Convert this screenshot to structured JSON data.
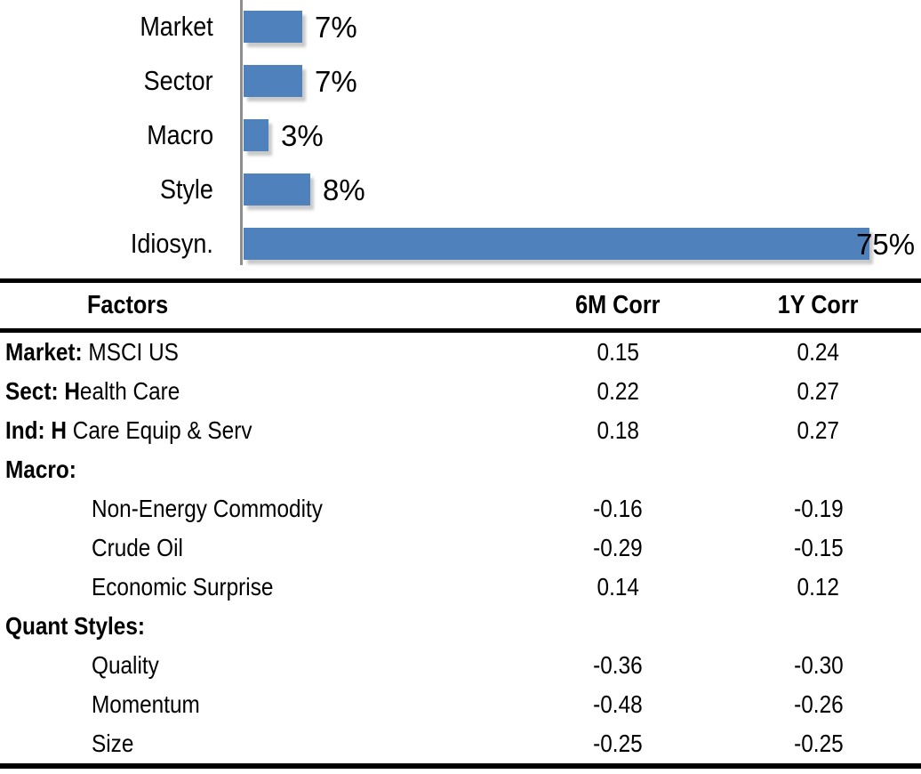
{
  "chart_data": {
    "type": "bar",
    "orientation": "horizontal",
    "title": "",
    "xlabel": "",
    "ylabel": "",
    "categories": [
      "Market",
      "Sector",
      "Macro",
      "Style",
      "Idiosyn."
    ],
    "values": [
      7,
      7,
      3,
      8,
      75
    ],
    "value_labels": [
      "7%",
      "7%",
      "3%",
      "8%",
      "75%"
    ],
    "xlim": [
      0,
      75
    ],
    "grid": false,
    "legend": false,
    "bar_color": "#4F81BD",
    "axis_color": "#8E8E8E"
  },
  "table": {
    "headers": {
      "factors": "Factors",
      "corr6m": "6M Corr",
      "corr1y": "1Y Corr"
    },
    "rows": [
      {
        "bold": "Market:",
        "text": " MSCI US",
        "indent": false,
        "corr6m": "0.15",
        "corr1y": "0.24"
      },
      {
        "bold": "Sect: H",
        "text": "ealth Care",
        "indent": false,
        "corr6m": "0.22",
        "corr1y": "0.27"
      },
      {
        "bold": "Ind: H ",
        "text": "Care Equip & Serv",
        "indent": false,
        "corr6m": "0.18",
        "corr1y": "0.27"
      },
      {
        "bold": "Macro:",
        "text": "",
        "indent": false,
        "corr6m": "",
        "corr1y": ""
      },
      {
        "bold": "",
        "text": "Non-Energy Commodity",
        "indent": true,
        "corr6m": "-0.16",
        "corr1y": "-0.19"
      },
      {
        "bold": "",
        "text": "Crude Oil",
        "indent": true,
        "corr6m": "-0.29",
        "corr1y": "-0.15"
      },
      {
        "bold": "",
        "text": "Economic Surprise",
        "indent": true,
        "corr6m": "0.14",
        "corr1y": "0.12"
      },
      {
        "bold": "Quant Styles:",
        "text": "",
        "indent": false,
        "corr6m": "",
        "corr1y": ""
      },
      {
        "bold": "",
        "text": "Quality",
        "indent": true,
        "corr6m": "-0.36",
        "corr1y": "-0.30"
      },
      {
        "bold": "",
        "text": "Momentum",
        "indent": true,
        "corr6m": "-0.48",
        "corr1y": "-0.26"
      },
      {
        "bold": "",
        "text": "Size",
        "indent": true,
        "corr6m": "-0.25",
        "corr1y": "-0.25"
      }
    ]
  },
  "colors": {
    "bar": "#4F81BD",
    "axis": "#8E8E8E",
    "text": "#000000",
    "rule": "#000000"
  }
}
